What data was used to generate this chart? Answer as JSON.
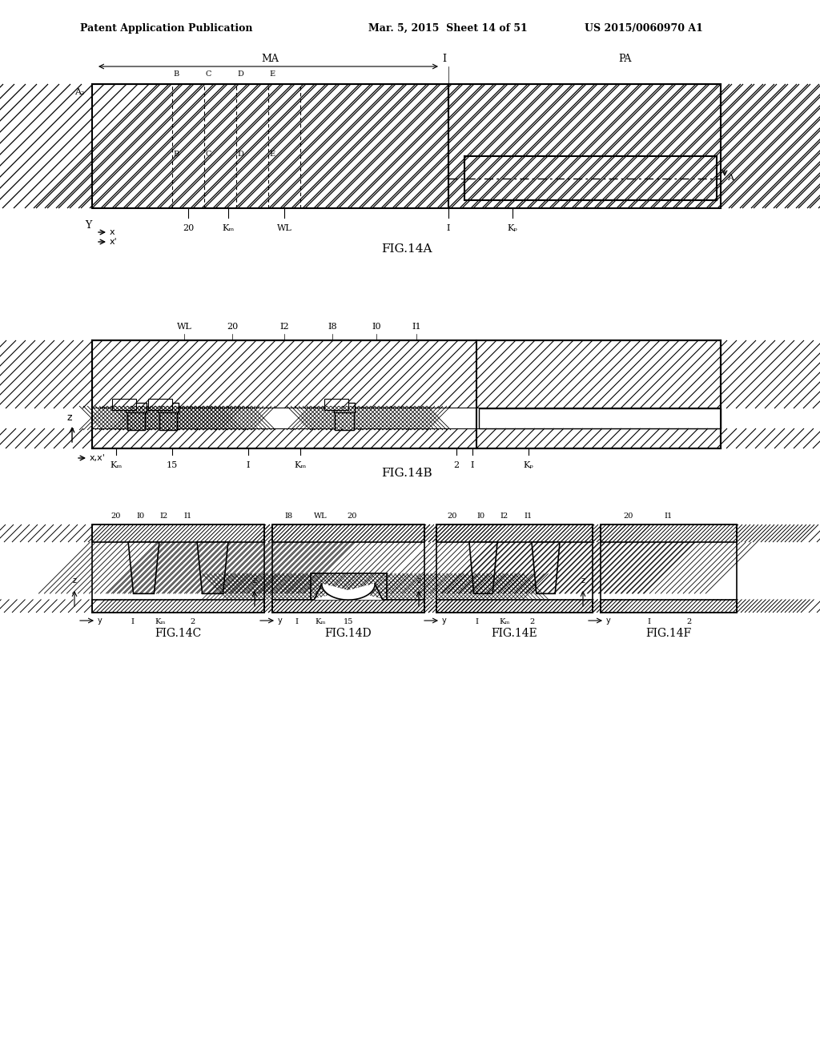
{
  "header_left": "Patent Application Publication",
  "header_mid": "Mar. 5, 2015  Sheet 14 of 51",
  "header_right": "US 2015/0060970 A1",
  "fig14a_label": "FIG.14A",
  "fig14b_label": "FIG.14B",
  "fig14c_label": "FIG.14C",
  "fig14d_label": "FIG.14D",
  "fig14e_label": "FIG.14E",
  "fig14f_label": "FIG.14F",
  "bg_color": "#ffffff",
  "line_color": "#000000",
  "hatch_color": "#000000",
  "gray_fill": "#d0d0d0",
  "white_fill": "#ffffff"
}
